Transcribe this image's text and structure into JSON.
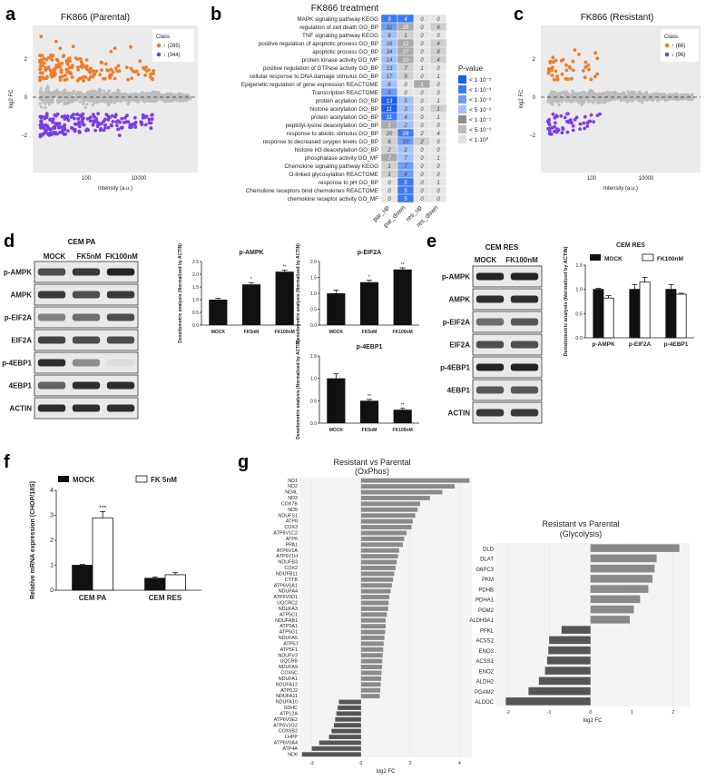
{
  "panel_labels": [
    "a",
    "b",
    "c",
    "d",
    "e",
    "f",
    "g"
  ],
  "colors": {
    "up": "#f07c2a",
    "down": "#7a3ee6",
    "grey": "#bdbdbd",
    "bar_dark": "#888888",
    "bar_black": "#111111",
    "blue": "#3d6fe0"
  },
  "panel_a": {
    "title": "FK866 (Parental)",
    "xlabel": "Intensity (a.u.)",
    "ylabel": "log2 FC",
    "legend_title": "Class",
    "legend_up": "↑ (285)",
    "legend_down": "↓ (344)",
    "yticks": [
      "2",
      "0",
      "−2"
    ],
    "xticks": [
      "100",
      "10000"
    ]
  },
  "panel_c": {
    "title": "FK866 (Resistant)",
    "xlabel": "Intensity (a.u.)",
    "ylabel": "log2 FC",
    "legend_title": "Class",
    "legend_up": "↑ (66)",
    "legend_down": "↓ (96)",
    "yticks": [
      "2",
      "0",
      "−2"
    ],
    "xticks": [
      "100",
      "10000"
    ]
  },
  "panel_b": {
    "title": "FK866 treatment",
    "columns": [
      "par_up",
      "par_down",
      "res_up",
      "res_down"
    ],
    "rows": [
      {
        "term": "MAPK signaling pathway KEGG",
        "values": [
          "9",
          "4",
          "0",
          "0"
        ]
      },
      {
        "term": "regulation of cell death GO_BP",
        "values": [
          "31",
          "25",
          "0",
          "6"
        ]
      },
      {
        "term": "TNF signaling pathway KEGG",
        "values": [
          "6",
          "1",
          "0",
          "0"
        ]
      },
      {
        "term": "positive regulation of apoptotic process GO_BP",
        "values": [
          "16",
          "12",
          "0",
          "4"
        ]
      },
      {
        "term": "apoptotic process GO_BP",
        "values": [
          "34",
          "27",
          "0",
          "8"
        ]
      },
      {
        "term": "protein kinase activity GO_MF",
        "values": [
          "14",
          "10",
          "0",
          "4"
        ]
      },
      {
        "term": "positive regulation of GTPase activity GO_BP",
        "values": [
          "13",
          "7",
          "1",
          "0"
        ]
      },
      {
        "term": "cellular response to DNA damage stimulus GO_BP",
        "values": [
          "17",
          "9",
          "0",
          "1"
        ]
      },
      {
        "term": "Epigenetic regulation of gene expression REACTOME",
        "values": [
          "6",
          "0",
          "1",
          "0"
        ]
      },
      {
        "term": "Transcription REACTOME",
        "values": [
          "9",
          "0",
          "0",
          "0"
        ]
      },
      {
        "term": "protein acylation GO_BP",
        "values": [
          "13",
          "5",
          "0",
          "1"
        ]
      },
      {
        "term": "histone acetylation GO_BP",
        "values": [
          "11",
          "3",
          "0",
          "1"
        ]
      },
      {
        "term": "protein acetylation GO_BP",
        "values": [
          "11",
          "4",
          "0",
          "1"
        ]
      },
      {
        "term": "peptidyl-lysine deacetylation GO_BP",
        "values": [
          "1",
          "2",
          "0",
          "0"
        ]
      },
      {
        "term": "response to abiotic stimulus GO_BP",
        "values": [
          "20",
          "28",
          "2",
          "4"
        ]
      },
      {
        "term": "response to decreased oxygen levels GO_BP",
        "values": [
          "6",
          "10",
          "2",
          "0"
        ]
      },
      {
        "term": "histone H3 deacetylation GO_BP",
        "values": [
          "2",
          "2",
          "0",
          "0"
        ]
      },
      {
        "term": "phosphatase activity GO_MF",
        "values": [
          "7",
          "7",
          "0",
          "1"
        ]
      },
      {
        "term": "Chemokine signaling pathway KEGG",
        "values": [
          "1",
          "7",
          "0",
          "0"
        ]
      },
      {
        "term": "O-linked glycosylation REACTOME",
        "values": [
          "1",
          "4",
          "0",
          "0"
        ]
      },
      {
        "term": "response to pH GO_BP",
        "values": [
          "0",
          "5",
          "0",
          "1"
        ]
      },
      {
        "term": "Chemokine receptors bind chemokines REACTOME",
        "values": [
          "0",
          "5",
          "0",
          "0"
        ]
      },
      {
        "term": "chemokine receptor activity GO_MF",
        "values": [
          "0",
          "5",
          "0",
          "0"
        ]
      }
    ],
    "shade": [
      [
        "b3",
        "b3",
        "g0",
        "g0"
      ],
      [
        "b2",
        "g2",
        "g0",
        "g1"
      ],
      [
        "b1",
        "g1",
        "g0",
        "g0"
      ],
      [
        "b1",
        "g2",
        "g0",
        "g1"
      ],
      [
        "b1",
        "g2",
        "g0",
        "g1"
      ],
      [
        "b1",
        "g2",
        "g0",
        "g1"
      ],
      [
        "b1",
        "g1",
        "g0",
        "g0"
      ],
      [
        "b1",
        "g1",
        "g0",
        "g0"
      ],
      [
        "b1",
        "g0",
        "g2",
        "g0"
      ],
      [
        "b2",
        "g0",
        "g0",
        "g0"
      ],
      [
        "b4",
        "b1",
        "g0",
        "g0"
      ],
      [
        "b4",
        "b1",
        "g0",
        "g1"
      ],
      [
        "b3",
        "b1",
        "g0",
        "g0"
      ],
      [
        "g2",
        "b1",
        "g0",
        "g0"
      ],
      [
        "g1",
        "b3",
        "g0",
        "g0"
      ],
      [
        "g1",
        "b2",
        "g1",
        "g0"
      ],
      [
        "g1",
        "b1",
        "g0",
        "g0"
      ],
      [
        "g2",
        "b1",
        "g0",
        "g0"
      ],
      [
        "g1",
        "b2",
        "g0",
        "g0"
      ],
      [
        "g1",
        "b2",
        "g0",
        "g0"
      ],
      [
        "g0",
        "b3",
        "g0",
        "g0"
      ],
      [
        "g0",
        "b3",
        "g0",
        "g0"
      ],
      [
        "g0",
        "b3",
        "g0",
        "g0"
      ]
    ],
    "legend_title": "P-value",
    "legend_items": [
      "< 1·10⁻⁵",
      "< 1·10⁻³",
      "< 1·10⁻²",
      "< 5·10⁻²",
      "< 1·10⁻¹",
      "< 5·10⁻¹",
      "< 1·10⁰"
    ]
  },
  "panel_d": {
    "blot_header": "CEM PA",
    "lanes": [
      "MOCK",
      "FK5nM",
      "FK100nM"
    ],
    "proteins": [
      "p-AMPK",
      "AMPK",
      "p-EIF2A",
      "EIF2A",
      "p-4EBP1",
      "4EBP1",
      "ACTIN"
    ],
    "ylabel": "Densitometric analysis (Normalized by ACTIN)",
    "charts": [
      {
        "title": "p-AMPK",
        "values": [
          1.0,
          1.6,
          2.1
        ],
        "errors": [
          0.05,
          0.07,
          0.06
        ],
        "sig": [
          "",
          "*",
          "**"
        ],
        "ymax": 2.5,
        "yticks": [
          "0.0",
          "0.5",
          "1.0",
          "1.5",
          "2.0",
          "2.5"
        ]
      },
      {
        "title": "p-EIF2A",
        "values": [
          1.0,
          1.35,
          1.75
        ],
        "errors": [
          0.1,
          0.06,
          0.05
        ],
        "sig": [
          "",
          "*",
          "**"
        ],
        "ymax": 2.0,
        "yticks": [
          "0.0",
          "0.5",
          "1.0",
          "1.5",
          "2.0"
        ]
      },
      {
        "title": "p-4EBP1",
        "values": [
          1.0,
          0.5,
          0.3
        ],
        "errors": [
          0.1,
          0.03,
          0.03
        ],
        "sig": [
          "",
          "**",
          "**"
        ],
        "ymax": 1.5,
        "yticks": [
          "0.0",
          "0.5",
          "1.0",
          "1.5"
        ]
      }
    ]
  },
  "panel_e": {
    "blot_header": "CEM RES",
    "lanes": [
      "MOCK",
      "FK100nM"
    ],
    "proteins": [
      "p-AMPK",
      "AMPK",
      "p-EIF2A",
      "EIF2A",
      "p-4EBP1",
      "4EBP1",
      "ACTIN"
    ],
    "chart_title": "CEM RES",
    "legend": [
      "MOCK",
      "FK100nM"
    ],
    "groups": [
      "p-AMPK",
      "p-EIF2A",
      "p-4EBP1"
    ],
    "mock": [
      1.0,
      1.0,
      1.0
    ],
    "mock_err": [
      0.02,
      0.1,
      0.1
    ],
    "fk": [
      0.82,
      1.15,
      0.9
    ],
    "fk_err": [
      0.05,
      0.1,
      0.02
    ],
    "ylabel": "Densitometric analysis (Normalized by ACTIN)",
    "yticks": [
      "0.0",
      "0.5",
      "1.0",
      "1.5"
    ],
    "ymax": 1.5
  },
  "panel_f": {
    "legend": [
      "MOCK",
      "FK 5nM"
    ],
    "ylabel": "Relative mRNA expression (CHOP/18S)",
    "groups": [
      "CEM PA",
      "CEM RES"
    ],
    "mock": [
      1.0,
      0.48
    ],
    "mock_err": [
      0.03,
      0.05
    ],
    "fk": [
      2.9,
      0.62
    ],
    "fk_err": [
      0.25,
      0.08
    ],
    "sig": "***",
    "yticks": [
      "0",
      "1",
      "2",
      "3",
      "4"
    ],
    "ymax": 4
  },
  "chart_data": [
    {
      "type": "bar",
      "title": "Resistant vs Parental (OxPhos)",
      "xlabel": "log2 FC",
      "xlim": [
        -2.5,
        4.5
      ],
      "xticks": [
        "-2",
        "0",
        "2",
        "4"
      ],
      "categories": [
        "ND1",
        "ND2",
        "ND4L",
        "ND3",
        "COX7B",
        "ND5",
        "NDUFS1",
        "ATP8",
        "COX3",
        "ATP6V1C2",
        "ATP6",
        "PPA1",
        "ATP6V1A",
        "ATP6V1H",
        "NDUFB3",
        "COX2",
        "NDUFB11",
        "CYTB",
        "ATP6V0A1",
        "NDUFA4",
        "ATP6V0D1",
        "UQCRC2",
        "NDUFA3",
        "ATP5C1",
        "NDUFAB1",
        "ATP5A1",
        "ATP5G1",
        "NDUFA5",
        "ATP5J",
        "ATP5F1",
        "NDUFV3",
        "UQCRB",
        "NDUFA9",
        "COX6C",
        "NDUFA1",
        "NDUFA12",
        "ATP5J2",
        "NDUFA11",
        "NDUFA10",
        "SDHC",
        "ATP12A",
        "ATP6V0E2",
        "ATP6V1G2",
        "COX6B2",
        "LHPP",
        "ATP6V0A4",
        "ATP4A",
        "ND6"
      ],
      "values": [
        4.4,
        3.8,
        3.3,
        2.8,
        2.4,
        2.3,
        2.2,
        2.1,
        2.05,
        1.85,
        1.75,
        1.7,
        1.55,
        1.5,
        1.45,
        1.4,
        1.35,
        1.3,
        1.25,
        1.2,
        1.15,
        1.12,
        1.1,
        1.05,
        1.0,
        1.0,
        0.98,
        0.95,
        0.92,
        0.9,
        0.88,
        0.86,
        0.85,
        0.83,
        0.82,
        0.8,
        0.78,
        0.76,
        -0.9,
        -0.95,
        -1.0,
        -1.05,
        -1.1,
        -1.2,
        -1.3,
        -1.7,
        -2.0,
        -2.4
      ]
    },
    {
      "type": "bar",
      "title": "Resistant vs Parental (Glycolysis)",
      "xlabel": "log2 FC",
      "xlim": [
        -2.3,
        2.4
      ],
      "xticks": [
        "-2",
        "-1",
        "0",
        "1",
        "2"
      ],
      "categories": [
        "DLD",
        "DLAT",
        "G6PC3",
        "PKM",
        "PDHB",
        "PDHA1",
        "PGM2",
        "ALDH9A1",
        "PFKL",
        "ACSS2",
        "ENO3",
        "ACSS1",
        "ENO2",
        "ALDH2",
        "PGAM2",
        "ALDOC"
      ],
      "values": [
        2.15,
        1.6,
        1.55,
        1.5,
        1.4,
        1.2,
        1.05,
        0.95,
        -0.7,
        -1.0,
        -1.02,
        -1.05,
        -1.1,
        -1.25,
        -1.5,
        -2.05
      ]
    }
  ]
}
